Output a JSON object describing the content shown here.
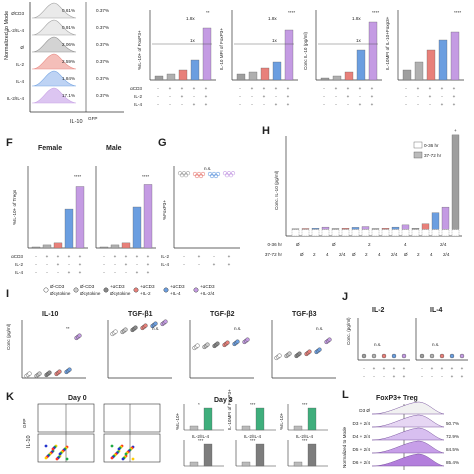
{
  "colors": {
    "vehicle": "#9e9e9e",
    "acd3": "#b0b0b0",
    "il2": "#e8807a",
    "il4": "#6b9ee0",
    "il24": "#c49be3",
    "green": "#3fae7c",
    "grey": "#7d7d7d"
  },
  "panel_e": {
    "ylabel": "Normalized to Mode",
    "xlabel": "IL-10",
    "xlabel_sup": "GFP",
    "rows": [
      {
        "label": "ØCD3",
        "left": "0.61%",
        "right": "0.37%"
      },
      {
        "label": "IL-2/IL-4",
        "left": "0.91%",
        "right": "0.37%"
      },
      {
        "label": "Ø",
        "left": "2.06%",
        "right": "0.37%"
      },
      {
        "label": "IL-2",
        "left": "2.59%",
        "right": "0.37%"
      },
      {
        "label": "IL-4",
        "left": "1.84%",
        "right": "0.37%"
      },
      {
        "label": "IL-2/IL-4",
        "left": "17.1%",
        "right": "0.37%"
      }
    ]
  },
  "top_charts": [
    {
      "id": "t1",
      "ylabel": "%IL-10+ of FoxP3+",
      "annot_fold": "1.8x",
      "annot_ref": "1x",
      "sig": "**"
    },
    {
      "id": "t2",
      "ylabel": "IL-10 MFI of FoxP3+",
      "annot_fold": "1.8x",
      "annot_ref": "1x",
      "sig": "****"
    },
    {
      "id": "t3",
      "ylabel": "Conc IL-10 (pg/ml)",
      "annot_fold": "1.8x",
      "annot_ref": "1x",
      "sig": "****"
    },
    {
      "id": "t4",
      "ylabel": "IL-10MFI of IL-10+Foxp3+",
      "sig": "****"
    }
  ],
  "treat_rows": {
    "acd3": "αCD3",
    "il2": "IL-2",
    "il4": "IL-4",
    "signs_acd3": [
      "-",
      "+",
      "+",
      "+",
      "+"
    ],
    "signs_il2": [
      "-",
      "-",
      "+",
      "-",
      "+"
    ],
    "signs_il4": [
      "-",
      "-",
      "-",
      "+",
      "+"
    ]
  },
  "panel_f": {
    "letter": "F",
    "female": "Female",
    "male": "Male",
    "ylabel": "%IL-10+ of Tregs",
    "sig": "****",
    "chart_data": {
      "type": "bar",
      "categories": [
        "-",
        "αCD3",
        "αCD3+IL-2",
        "αCD3+IL-4",
        "αCD3+IL-2/IL-4"
      ],
      "series": [
        {
          "name": "Female",
          "values": [
            1,
            3,
            5,
            38,
            60
          ]
        },
        {
          "name": "Male",
          "values": [
            1,
            3,
            5,
            40,
            62
          ]
        }
      ],
      "ylim": [
        0,
        80
      ]
    }
  },
  "panel_g": {
    "letter": "G",
    "ylabel": "%FoxP3+",
    "sig": "n.s.",
    "il2": "IL-2",
    "il4": "IL-4",
    "signs_il2": [
      "-",
      "+",
      "-",
      "+"
    ],
    "signs_il4": [
      "-",
      "-",
      "+",
      "+"
    ],
    "chart_data": {
      "type": "scatter",
      "values": [
        90,
        89,
        89,
        90
      ],
      "ylim": [
        0,
        100
      ]
    }
  },
  "panel_h": {
    "letter": "H",
    "ylabel": "Conc. IL-10 (pg/ml)",
    "legend": [
      "0-36 hr",
      "37-72 hr"
    ],
    "row1_label": "0-36 hr",
    "row2_label": "37-72 hr",
    "row1": [
      "Ø",
      "Ø",
      "2",
      "4",
      "2/4"
    ],
    "row2": [
      "Ø",
      "2",
      "4",
      "2/4",
      "Ø",
      "2",
      "4",
      "2/4",
      "Ø",
      "2",
      "4",
      "2/4"
    ],
    "sig": "+",
    "chart_data": {
      "type": "bar",
      "series": [
        {
          "name": "0-36 hr",
          "values": [
            60,
            60,
            60,
            60,
            60,
            60,
            60,
            60,
            60,
            60,
            60,
            60,
            60,
            60,
            60,
            60,
            60
          ]
        },
        {
          "name": "37-72 hr",
          "values": [
            20,
            30,
            40,
            80,
            30,
            40,
            70,
            100,
            30,
            40,
            80,
            160,
            40,
            200,
            600,
            800,
            3400
          ]
        }
      ]
    }
  },
  "panel_i": {
    "letter": "I",
    "legend": [
      {
        "top": "Ø-CD3",
        "bottom": "Øcytokine"
      },
      {
        "top": "Ø-CD3",
        "bottom": "Øcytokine"
      },
      {
        "top": "+αCD3",
        "bottom": "Øcytokine"
      },
      {
        "top": "+αCD3",
        "bottom": "+IL-2"
      },
      {
        "top": "+αCD3",
        "bottom": "+IL-4"
      },
      {
        "top": "+αCD3",
        "bottom": "+IL-2/4"
      }
    ],
    "ylabel": "Conc (pg/ml)",
    "subtitles": [
      "IL-10",
      "TGF-β1",
      "TGF-β2",
      "TGF-β3"
    ],
    "sig_il10": "**",
    "sig_tgf": "n.s."
  },
  "panel_j": {
    "letter": "J",
    "ylabel": "Conc. (pg/ml)",
    "subtitles": [
      "IL-2",
      "IL-4"
    ],
    "sig": "n.s.",
    "acd3": "αCD3",
    "il4": "IL-4",
    "signs_acd3": [
      "-",
      "+",
      "+",
      "+",
      "+"
    ],
    "signs_il4": [
      "-",
      "-",
      "-",
      "+",
      "+"
    ]
  },
  "panel_k": {
    "letter": "K",
    "day0": "Day 0",
    "day3": "Day 3",
    "ylabel": "IL-10",
    "ylabel_sup": "GFP",
    "bar_ylabels": [
      "%IL-10+",
      "IL-10MFI of FoxP3+",
      "%IL-10+"
    ],
    "sig_top": [
      "*",
      "***",
      "***"
    ],
    "sig_bottom": [
      "***",
      "***",
      "***"
    ],
    "legend": [
      "IL-2/IL-4",
      "IL-2/IL-4",
      "IL-2/IL-4"
    ]
  },
  "panel_l": {
    "letter": "L",
    "title": "FoxP3+ Treg",
    "ylabel": "Normalized to Mode",
    "rows": [
      {
        "label": "D3 Ø",
        "pct": ""
      },
      {
        "label": "D3 + 2/4",
        "pct": "50.7%"
      },
      {
        "label": "D4 + 2/4",
        "pct": "72.9%"
      },
      {
        "label": "D5 + 2/4",
        "pct": "84.5%"
      },
      {
        "label": "D6 + 2/4",
        "pct": "85.4%"
      }
    ]
  }
}
